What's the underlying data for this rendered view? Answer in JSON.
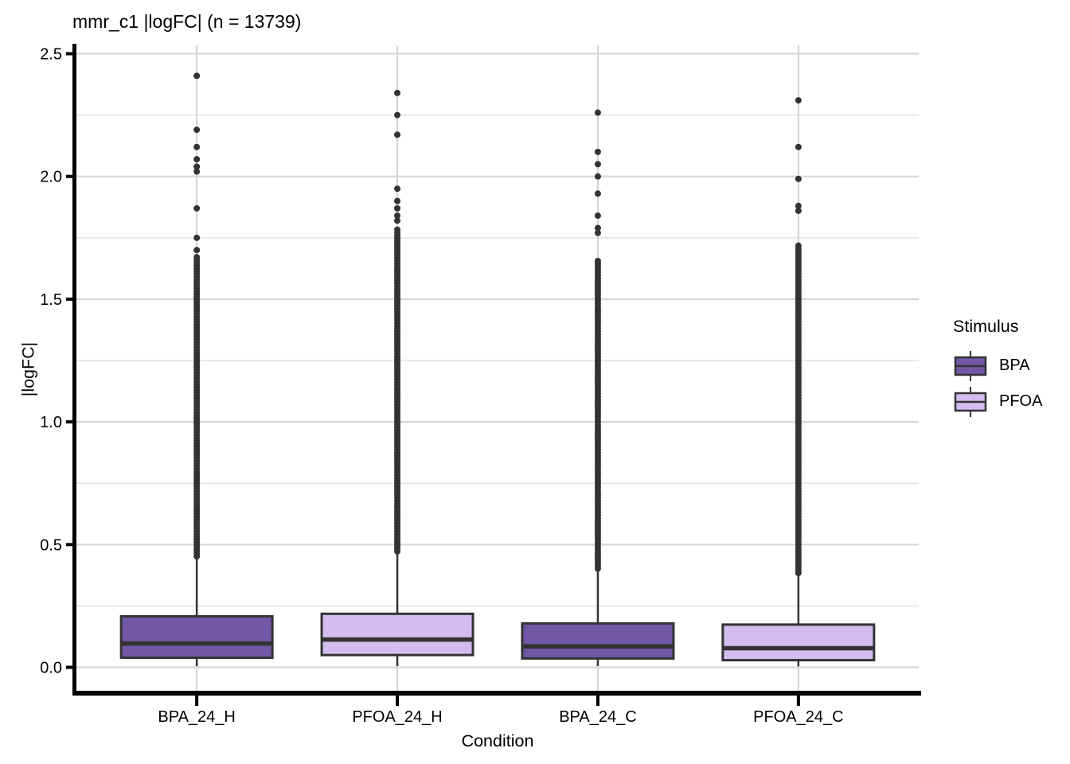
{
  "chart_data": {
    "type": "boxplot",
    "title": "mmr_c1 |logFC| (n = 13739)",
    "n": 13739,
    "xlabel": "Condition",
    "ylabel": "|logFC|",
    "ylim": [
      0,
      2.5
    ],
    "y_major_ticks": [
      0.0,
      0.5,
      1.0,
      1.5,
      2.0,
      2.5
    ],
    "y_minor_ticks": [
      0.25,
      0.75,
      1.25,
      1.75,
      2.25
    ],
    "categories": [
      "BPA_24_H",
      "PFOA_24_H",
      "BPA_24_C",
      "PFOA_24_C"
    ],
    "grid": true,
    "legend_position": "right",
    "legend": {
      "title": "Stimulus",
      "items": [
        {
          "label": "BPA",
          "color": "#7157A6"
        },
        {
          "label": "PFOA",
          "color": "#D3BCEE"
        }
      ]
    },
    "colors": {
      "box_stroke": "#333333",
      "outlier": "#333333",
      "grid_major": "#d6d6d6",
      "grid_minor": "#e4e4e4",
      "axis": "#000000"
    },
    "boxes": [
      {
        "category": "BPA_24_H",
        "stimulus": "BPA",
        "whisker_low": 0.005,
        "q1": 0.039,
        "median": 0.097,
        "q3": 0.208,
        "whisker_high": 0.443,
        "outliers_dense_range": [
          0.452,
          1.68
        ],
        "outliers_sparse": [
          1.7,
          1.75,
          1.87,
          2.02,
          2.04,
          2.07,
          2.12,
          2.19,
          2.41
        ]
      },
      {
        "category": "PFOA_24_H",
        "stimulus": "PFOA",
        "whisker_low": 0.005,
        "q1": 0.05,
        "median": 0.113,
        "q3": 0.218,
        "whisker_high": 0.462,
        "outliers_dense_range": [
          0.472,
          1.79
        ],
        "outliers_sparse": [
          1.82,
          1.84,
          1.87,
          1.9,
          1.95,
          2.17,
          2.25,
          2.34
        ]
      },
      {
        "category": "BPA_24_C",
        "stimulus": "BPA",
        "whisker_low": 0.005,
        "q1": 0.036,
        "median": 0.085,
        "q3": 0.179,
        "whisker_high": 0.392,
        "outliers_dense_range": [
          0.402,
          1.66
        ],
        "outliers_sparse": [
          1.77,
          1.79,
          1.84,
          1.93,
          2.0,
          2.05,
          2.1,
          2.26
        ]
      },
      {
        "category": "PFOA_24_C",
        "stimulus": "PFOA",
        "whisker_low": 0.004,
        "q1": 0.029,
        "median": 0.078,
        "q3": 0.174,
        "whisker_high": 0.374,
        "outliers_dense_range": [
          0.384,
          1.72
        ],
        "outliers_sparse": [
          1.86,
          1.88,
          1.99,
          2.12,
          2.31
        ]
      }
    ]
  }
}
